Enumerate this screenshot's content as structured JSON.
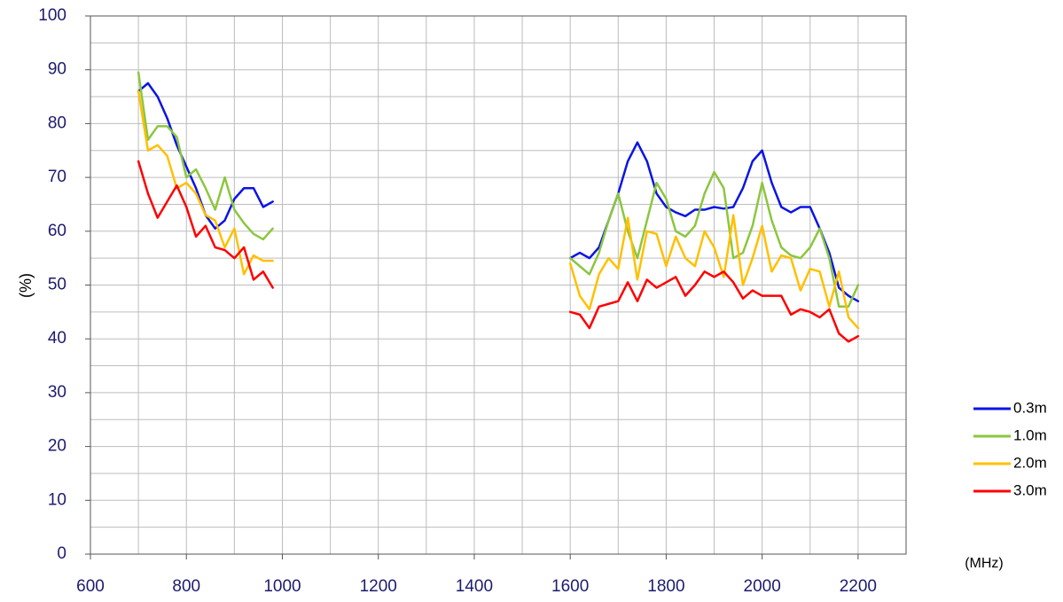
{
  "chart_data": {
    "type": "line",
    "y_label": "(%)",
    "x_label": "(MHz)",
    "xlim": [
      600,
      2300
    ],
    "ylim": [
      0,
      100
    ],
    "xticks": [
      600,
      800,
      1000,
      1200,
      1400,
      1600,
      1800,
      2000,
      2200
    ],
    "yticks": [
      0,
      10,
      20,
      30,
      40,
      50,
      60,
      70,
      80,
      90,
      100
    ],
    "x_minor_ticks": [
      700,
      900,
      1100,
      1300,
      1500,
      1700,
      1900,
      2100,
      2300
    ],
    "y_minor_ticks": [
      5,
      15,
      25,
      35,
      45,
      55,
      65,
      75,
      85,
      95
    ],
    "grid": true,
    "legend": "right",
    "x": [
      700,
      720,
      740,
      760,
      780,
      800,
      820,
      840,
      860,
      880,
      900,
      920,
      940,
      960,
      980,
      1300,
      1600,
      1620,
      1640,
      1660,
      1680,
      1700,
      1720,
      1740,
      1760,
      1780,
      1800,
      1820,
      1840,
      1860,
      1880,
      1900,
      1920,
      1940,
      1960,
      1980,
      2000,
      2020,
      2040,
      2060,
      2080,
      2100,
      2120,
      2140,
      2160,
      2180,
      2200
    ],
    "series": [
      {
        "name": "0.3m",
        "color": "#0a14e6",
        "values": [
          86,
          87.5,
          85,
          81,
          76,
          72,
          68,
          63,
          60.5,
          62,
          66,
          68,
          68,
          64.5,
          65.5,
          null,
          55,
          56,
          55,
          57,
          62,
          67,
          73,
          76.5,
          73,
          67,
          64.5,
          63.5,
          62.8,
          64,
          64,
          64.5,
          64.2,
          64.5,
          68,
          73,
          75,
          69,
          64.5,
          63.5,
          64.5,
          64.5,
          60.5,
          56,
          49.5,
          48,
          47
        ]
      },
      {
        "name": "1.0m",
        "color": "#8cc63f",
        "values": [
          89.5,
          77,
          79.5,
          79.5,
          77.5,
          70,
          71.5,
          68,
          64,
          70,
          64,
          61.5,
          59.5,
          58.5,
          60.5,
          null,
          55,
          53.5,
          52,
          56,
          62,
          67,
          60,
          55,
          62,
          69,
          66,
          60,
          59,
          61,
          67,
          71,
          68,
          55,
          56,
          61,
          69,
          62,
          57,
          55.5,
          55,
          57,
          60.5,
          55,
          46,
          46,
          50
        ]
      },
      {
        "name": "2.0m",
        "color": "#ffc000",
        "values": [
          86,
          75,
          76,
          74,
          68,
          69,
          67,
          63,
          62,
          57,
          60.5,
          52,
          55.5,
          54.5,
          54.5,
          null,
          54,
          48,
          45.5,
          52,
          55,
          53,
          62.5,
          51,
          60,
          59.5,
          53.5,
          59,
          55,
          53.5,
          60,
          57,
          51.5,
          63,
          50,
          55,
          61,
          52.5,
          55.5,
          55,
          49,
          53,
          52.5,
          46,
          52.5,
          44,
          42
        ]
      },
      {
        "name": "3.0m",
        "color": "#ff0000",
        "values": [
          73,
          67,
          62.5,
          65.5,
          68.5,
          64.5,
          59,
          61,
          57,
          56.5,
          55,
          57,
          51,
          52.5,
          49.5,
          null,
          45,
          44.5,
          42,
          46,
          46.5,
          47,
          50.5,
          47,
          51,
          49.5,
          50.5,
          51.5,
          48,
          50,
          52.5,
          51.5,
          52.5,
          50.5,
          47.5,
          49,
          48,
          48,
          48,
          44.5,
          45.5,
          45,
          44,
          45.5,
          41,
          39.5,
          40.5
        ]
      }
    ]
  }
}
